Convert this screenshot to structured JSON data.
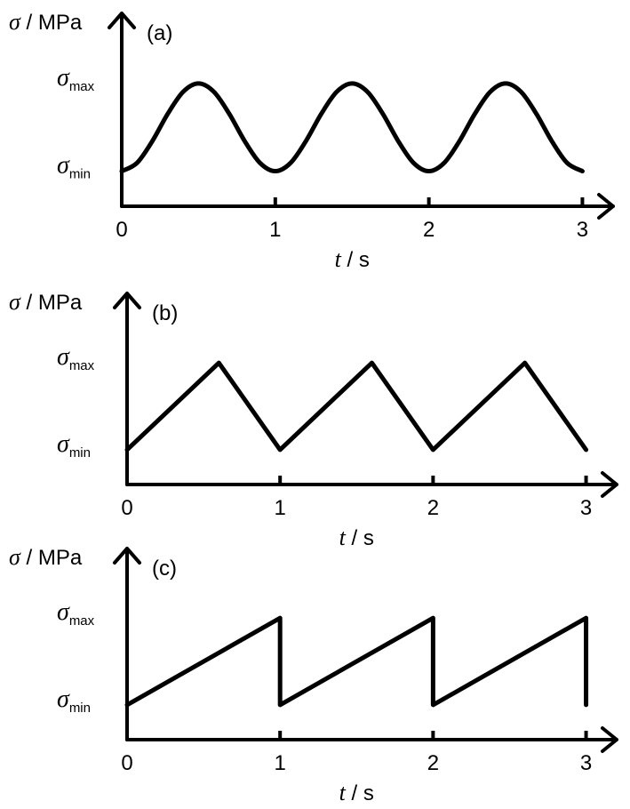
{
  "chart_data": [
    {
      "type": "line",
      "title": "(a)",
      "y_label": "σ / MPa",
      "x_label": "t / s",
      "smooth": true,
      "color": "#000000",
      "x": [
        0,
        0.1,
        0.2,
        0.3,
        0.4,
        0.5,
        0.6,
        0.7,
        0.8,
        0.9,
        1,
        1.1,
        1.2,
        1.3,
        1.4,
        1.5,
        1.6,
        1.7,
        1.8,
        1.9,
        2,
        2.1,
        2.2,
        2.3,
        2.4,
        2.5,
        2.6,
        2.7,
        2.8,
        2.9,
        3
      ],
      "values": [
        0,
        0.095,
        0.345,
        0.655,
        0.905,
        1,
        0.905,
        0.655,
        0.345,
        0.095,
        0,
        0.095,
        0.345,
        0.655,
        0.905,
        1,
        0.905,
        0.655,
        0.345,
        0.095,
        0,
        0.095,
        0.345,
        0.655,
        0.905,
        1,
        0.905,
        0.655,
        0.345,
        0.095,
        0
      ],
      "xlim": [
        0,
        3.2
      ],
      "xticks": [
        0,
        1,
        2,
        3
      ],
      "ylim": [
        -0.4,
        1.8
      ],
      "yticks": [
        {
          "value": 0,
          "label": "σmin"
        },
        {
          "value": 1,
          "label": "σmax"
        }
      ]
    },
    {
      "type": "line",
      "title": "(b)",
      "y_label": "σ / MPa",
      "x_label": "t / s",
      "smooth": false,
      "color": "#000000",
      "x": [
        0,
        0.6,
        1,
        1.6,
        2,
        2.6,
        3
      ],
      "values": [
        0,
        1,
        0,
        1,
        0,
        1,
        0
      ],
      "xlim": [
        0,
        3.2
      ],
      "xticks": [
        0,
        1,
        2,
        3
      ],
      "ylim": [
        -0.4,
        1.8
      ],
      "yticks": [
        {
          "value": 0,
          "label": "σmin"
        },
        {
          "value": 1,
          "label": "σmax"
        }
      ]
    },
    {
      "type": "line",
      "title": "(c)",
      "y_label": "σ / MPa",
      "x_label": "t / s",
      "smooth": false,
      "color": "#000000",
      "x": [
        0,
        1,
        1,
        2,
        2,
        3,
        3
      ],
      "values": [
        0,
        1,
        0,
        1,
        0,
        1,
        0
      ],
      "xlim": [
        0,
        3.2
      ],
      "xticks": [
        0,
        1,
        2,
        3
      ],
      "ylim": [
        -0.4,
        1.8
      ],
      "yticks": [
        {
          "value": 0,
          "label": "σmin"
        },
        {
          "value": 1,
          "label": "σmax"
        }
      ]
    }
  ]
}
